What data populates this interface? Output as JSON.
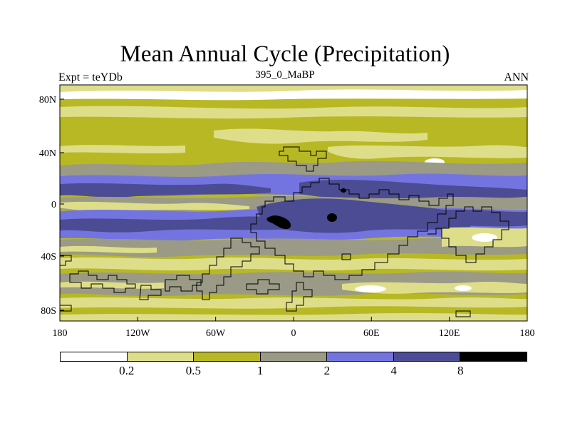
{
  "title": "Mean Annual Cycle (Precipitation)",
  "subtitle_left": "Expt = teYDb",
  "subtitle_center": "395_0_MaBP",
  "subtitle_right": "ANN",
  "map": {
    "x_ticks": [
      "180",
      "120W",
      "60W",
      "0",
      "60E",
      "120E",
      "180"
    ],
    "y_ticks": [
      "80N",
      "40N",
      "0",
      "40S",
      "80S"
    ]
  },
  "colorbar": {
    "colors": [
      "#ffffff",
      "#dede8a",
      "#b8b825",
      "#9a9a86",
      "#7474e0",
      "#4c4c94",
      "#000000"
    ],
    "labels": [
      "0.2",
      "0.5",
      "1",
      "2",
      "4",
      "8"
    ]
  }
}
